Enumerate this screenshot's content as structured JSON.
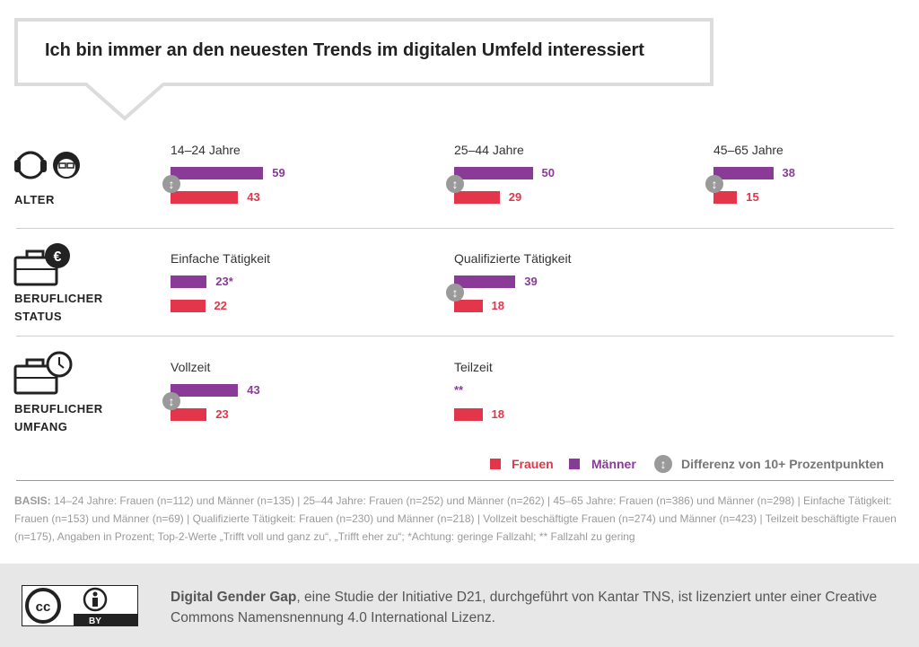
{
  "title": "Ich bin immer an den neuesten Trends im digitalen Umfeld interessiert",
  "colors": {
    "frauen": "#e3364a",
    "maenner": "#8a3b97"
  },
  "sections": [
    {
      "label": "ALTER",
      "groups": [
        {
          "label": "14–24 Jahre",
          "maenner": 59,
          "frauen": 43,
          "diff": true
        },
        {
          "label": "25–44 Jahre",
          "maenner": 50,
          "frauen": 29,
          "diff": true
        },
        {
          "label": "45–65 Jahre",
          "maenner": 38,
          "frauen": 15,
          "diff": true
        }
      ]
    },
    {
      "label": "BERUFLICHER STATUS",
      "groups": [
        {
          "label": "Einfache Tätigkeit",
          "maenner": 23,
          "maenner_label": "23*",
          "frauen": 22,
          "diff": false
        },
        {
          "label": "Qualifizierte Tätigkeit",
          "maenner": 39,
          "frauen": 18,
          "diff": true
        }
      ]
    },
    {
      "label": "BERUFLICHER UMFANG",
      "groups": [
        {
          "label": "Vollzeit",
          "maenner": 43,
          "frauen": 23,
          "diff": true
        },
        {
          "label": "Teilzeit",
          "maenner": null,
          "maenner_label": "**",
          "frauen": 18,
          "diff": false
        }
      ]
    }
  ],
  "legend": {
    "frauen": "Frauen",
    "maenner": "Männer",
    "diff": "Differenz von 10+ Prozentpunkten"
  },
  "basis": {
    "label": "BASIS:",
    "text": "14–24 Jahre: Frauen (n=112) und Männer (n=135) | 25–44 Jahre: Frauen (n=252) und Männer (n=262) | 45–65 Jahre: Frauen (n=386) und Männer (n=298) | Einfache Tätigkeit: Frauen (n=153) und Männer (n=69) | Qualifizierte Tätigkeit: Frauen (n=230) und Männer (n=218) | Vollzeit beschäftigte Frauen (n=274) und Männer (n=423) | Teilzeit beschäftigte Frauen (n=175), Angaben in Prozent; Top-2-Werte „Trifft voll und ganz zu“, „Trifft eher zu“; *Achtung: geringe Fallzahl; ** Fallzahl zu gering"
  },
  "footer": {
    "bold": "Digital Gender Gap",
    "text": ", eine Studie der Initiative D21, durchgeführt von Kantar TNS, ist lizenziert unter einer Creative Commons Namensnennung 4.0 International Lizenz.",
    "badge": "BY"
  }
}
